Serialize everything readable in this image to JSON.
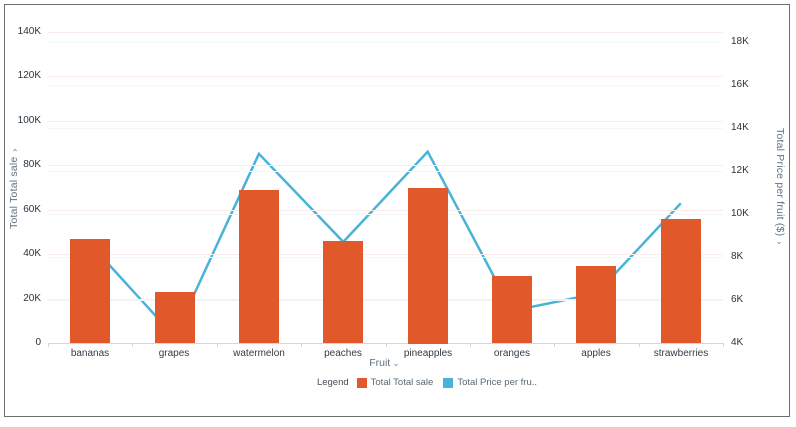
{
  "chart": {
    "left_axis": {
      "title": "Total Total sale",
      "ticks": [
        "0",
        "20K",
        "40K",
        "60K",
        "80K",
        "100K",
        "120K",
        "140K"
      ]
    },
    "right_axis": {
      "title": "Total Price per fruit ($)",
      "ticks": [
        "4K",
        "6K",
        "8K",
        "10K",
        "12K",
        "14K",
        "16K",
        "18K"
      ]
    },
    "x_axis": {
      "title": "Fruit",
      "categories": [
        "bananas",
        "grapes",
        "watermelon",
        "peaches",
        "pineapples",
        "oranges",
        "apples",
        "strawberries"
      ]
    },
    "legend": {
      "label": "Legend",
      "items": [
        {
          "label": "Total Total sale",
          "color": "#e1582a"
        },
        {
          "label": "Total Price per fru..",
          "color": "#4ab2d9"
        }
      ]
    }
  },
  "icons": {
    "chevron_down": "⌄"
  },
  "colors": {
    "bar": "#e1582a",
    "line": "#4ab2d9",
    "tick_text": "#2b333c",
    "axis_text": "#5f7180",
    "baseline": "#cdd9e5",
    "grid_left": "#f8edeb",
    "grid_right": "#f3f7f9",
    "frame_border": "#6e6e6e"
  },
  "chart_data": {
    "type": "combo",
    "title": "",
    "xlabel": "Fruit",
    "categories": [
      "bananas",
      "grapes",
      "watermelon",
      "peaches",
      "pineapples",
      "oranges",
      "apples",
      "strawberries"
    ],
    "series": [
      {
        "name": "Total Total sale",
        "type": "bar",
        "axis": "left",
        "values": [
          47000,
          23000,
          69000,
          46000,
          70000,
          30000,
          34500,
          56000
        ]
      },
      {
        "name": "Total Price per fruit ($)",
        "type": "line",
        "axis": "right",
        "values": [
          8600,
          4300,
          12800,
          8700,
          12900,
          5500,
          6300,
          10500
        ]
      }
    ],
    "ylabel_left": "Total Total sale",
    "ylabel_right": "Total Price per fruit ($)",
    "ylim_left": [
      0,
      140000
    ],
    "ylim_right": [
      4000,
      18000
    ],
    "left_tick_step": 20000,
    "right_tick_step": 2000,
    "grid": true,
    "legend_position": "bottom"
  }
}
